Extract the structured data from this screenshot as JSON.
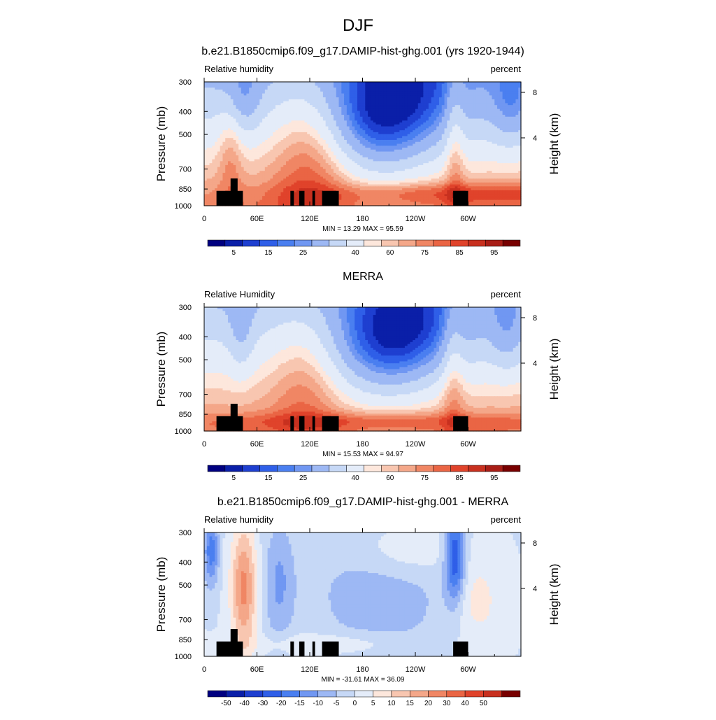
{
  "figure": {
    "title": "DJF"
  },
  "chart_data": [
    {
      "type": "contour",
      "title": "b.e21.B1850cmip6.f09_g17.DAMIP-hist-ghg.001 (yrs 1920-1944)",
      "left_label": "Relative humidity",
      "right_label": "percent",
      "ylabel": "Pressure (mb)",
      "y2label": "Height (km)",
      "xticks": [
        "0",
        "60E",
        "120E",
        "180",
        "120W",
        "60W"
      ],
      "xtick_values": [
        0,
        60,
        120,
        180,
        240,
        300
      ],
      "xlim": [
        0,
        360
      ],
      "yticks": [
        "300",
        "400",
        "500",
        "700",
        "850",
        "1000"
      ],
      "ytick_values": [
        300,
        400,
        500,
        700,
        850,
        1000
      ],
      "ylim": [
        1000,
        300
      ],
      "yscale": "log",
      "y2ticks": [
        "8",
        "4"
      ],
      "y2tick_values": [
        8,
        4
      ],
      "stats": "MIN =  13.29  MAX =  95.59",
      "colorbar_labels": [
        "5",
        "15",
        "25",
        "40",
        "60",
        "75",
        "85",
        "95"
      ],
      "colors": [
        "#000080",
        "#0a1fa8",
        "#1e3fd0",
        "#2f5fe8",
        "#4a7ff0",
        "#7097f2",
        "#9db8f4",
        "#c6d8f6",
        "#e4ecf9",
        "#fde7dc",
        "#f8c6b0",
        "#f4a789",
        "#f08664",
        "#ea6544",
        "#e0432b",
        "#c8301f",
        "#a81d16",
        "#780000"
      ],
      "kind": "rh"
    },
    {
      "type": "contour",
      "title": "MERRA",
      "left_label": "Relative Humidity",
      "right_label": "percent",
      "ylabel": "Pressure (mb)",
      "y2label": "Height (km)",
      "xticks": [
        "0",
        "60E",
        "120E",
        "180",
        "120W",
        "60W"
      ],
      "xtick_values": [
        0,
        60,
        120,
        180,
        240,
        300
      ],
      "xlim": [
        0,
        360
      ],
      "yticks": [
        "300",
        "400",
        "500",
        "700",
        "850",
        "1000"
      ],
      "ytick_values": [
        300,
        400,
        500,
        700,
        850,
        1000
      ],
      "ylim": [
        1000,
        300
      ],
      "yscale": "log",
      "y2ticks": [
        "8",
        "4"
      ],
      "y2tick_values": [
        8,
        4
      ],
      "stats": "MIN =  15.53  MAX =  94.97",
      "colorbar_labels": [
        "5",
        "15",
        "25",
        "40",
        "60",
        "75",
        "85",
        "95"
      ],
      "colors": [
        "#000080",
        "#0a1fa8",
        "#1e3fd0",
        "#2f5fe8",
        "#4a7ff0",
        "#7097f2",
        "#9db8f4",
        "#c6d8f6",
        "#e4ecf9",
        "#fde7dc",
        "#f8c6b0",
        "#f4a789",
        "#f08664",
        "#ea6544",
        "#e0432b",
        "#c8301f",
        "#a81d16",
        "#780000"
      ],
      "kind": "rh2"
    },
    {
      "type": "contour",
      "title": "b.e21.B1850cmip6.f09_g17.DAMIP-hist-ghg.001 - MERRA",
      "left_label": "Relative humidity",
      "right_label": "percent",
      "ylabel": "Pressure (mb)",
      "y2label": "Height (km)",
      "xticks": [
        "0",
        "60E",
        "120E",
        "180",
        "120W",
        "60W"
      ],
      "xtick_values": [
        0,
        60,
        120,
        180,
        240,
        300
      ],
      "xlim": [
        0,
        360
      ],
      "yticks": [
        "300",
        "400",
        "500",
        "700",
        "850",
        "1000"
      ],
      "ytick_values": [
        300,
        400,
        500,
        700,
        850,
        1000
      ],
      "ylim": [
        1000,
        300
      ],
      "yscale": "log",
      "y2ticks": [
        "8",
        "4"
      ],
      "y2tick_values": [
        8,
        4
      ],
      "stats": "MIN = -31.61  MAX =  36.09",
      "colorbar_labels": [
        "-50",
        "-40",
        "-30",
        "-20",
        "-15",
        "-10",
        "-5",
        "0",
        "5",
        "10",
        "15",
        "20",
        "30",
        "40",
        "50"
      ],
      "colors": [
        "#000080",
        "#0a1fa8",
        "#1e3fd0",
        "#2f5fe8",
        "#4a7ff0",
        "#7097f2",
        "#9db8f4",
        "#c6d8f6",
        "#e4ecf9",
        "#fde7dc",
        "#f8c6b0",
        "#f4a789",
        "#f08664",
        "#ea6544",
        "#e0432b",
        "#c8301f",
        "#780000"
      ],
      "kind": "diff"
    }
  ]
}
